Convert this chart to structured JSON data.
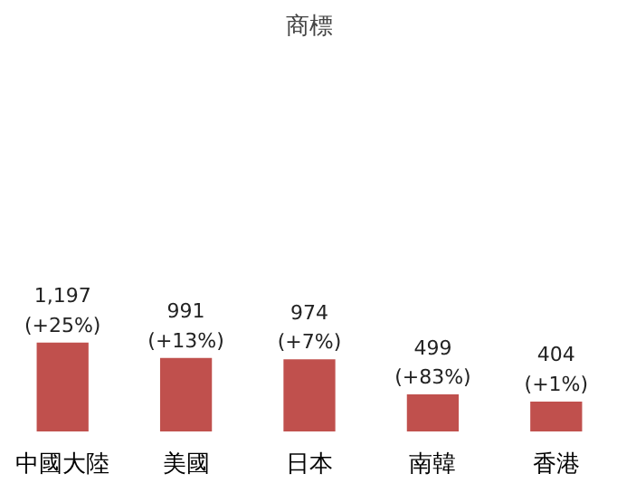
{
  "chart_data": {
    "type": "bar",
    "title": "商標",
    "categories": [
      "中國大陸",
      "美國",
      "日本",
      "南韓",
      "香港"
    ],
    "values": [
      1197,
      991,
      974,
      499,
      404
    ],
    "color": "#c0504d",
    "value_labels": [
      "1,197\n(+25%)",
      "991\n(+13%)",
      "974\n(+7%)",
      "499\n(+83%)",
      "404\n(+1%)"
    ],
    "grid": false
  }
}
